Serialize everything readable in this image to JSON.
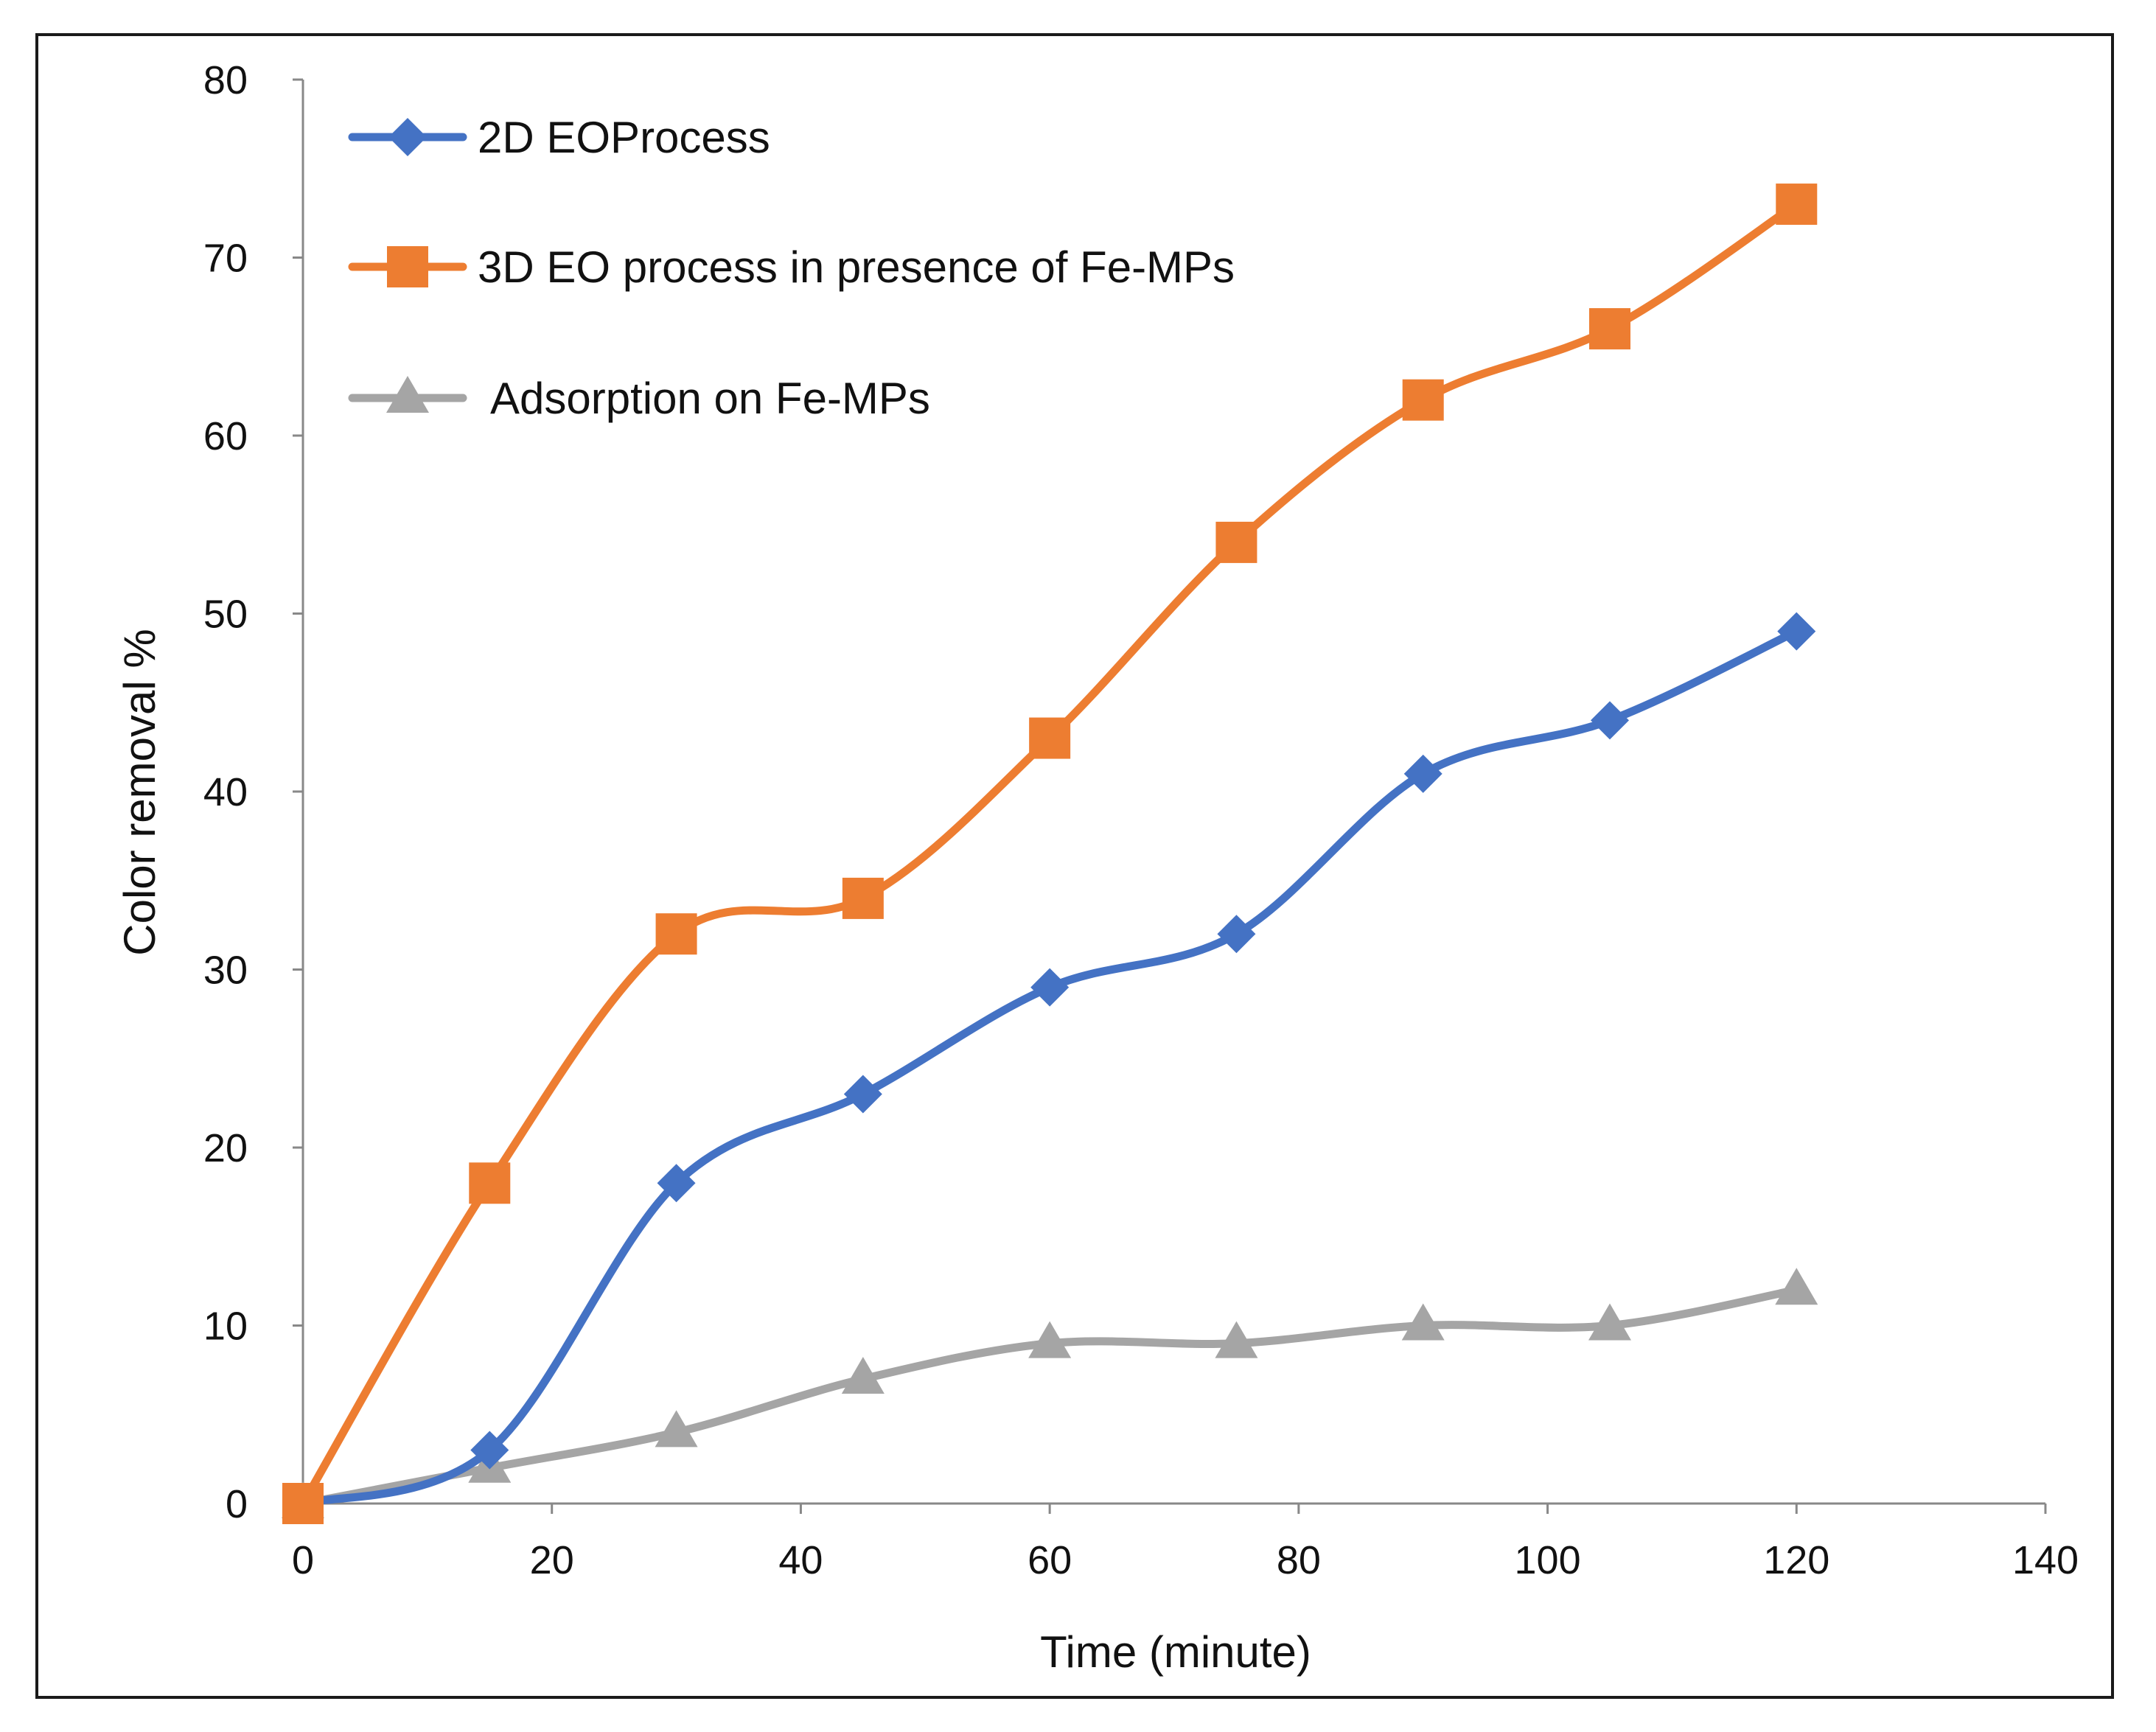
{
  "chart_data": {
    "type": "line",
    "title": "",
    "xlabel": "Time (minute)",
    "ylabel": "Color removal %",
    "xlim": [
      0,
      140
    ],
    "ylim": [
      0,
      80
    ],
    "xticks": [
      0,
      20,
      40,
      60,
      80,
      100,
      120,
      140
    ],
    "yticks": [
      0,
      10,
      20,
      30,
      40,
      50,
      60,
      70,
      80
    ],
    "grid": false,
    "legend_position": "top-left",
    "smooth": true,
    "series": [
      {
        "name": "2D EOProcess",
        "color": "#4472c4",
        "marker": "diamond",
        "x": [
          0,
          15,
          30,
          45,
          60,
          75,
          90,
          105,
          120
        ],
        "values": [
          0,
          3,
          18,
          23,
          29,
          32,
          41,
          44,
          49
        ]
      },
      {
        "name": "3D EO process in presence of Fe-MPs",
        "color": "#ed7d31",
        "marker": "square",
        "x": [
          0,
          15,
          30,
          45,
          60,
          75,
          90,
          105,
          120
        ],
        "values": [
          0,
          18,
          32,
          34,
          43,
          54,
          62,
          66,
          73
        ]
      },
      {
        "name": "Adsorption on Fe-MPs",
        "color": "#a5a5a5",
        "marker": "triangle",
        "x": [
          0,
          15,
          30,
          45,
          60,
          75,
          90,
          105,
          120
        ],
        "values": [
          0,
          2,
          4,
          7,
          9,
          9,
          10,
          10,
          12
        ]
      }
    ]
  }
}
